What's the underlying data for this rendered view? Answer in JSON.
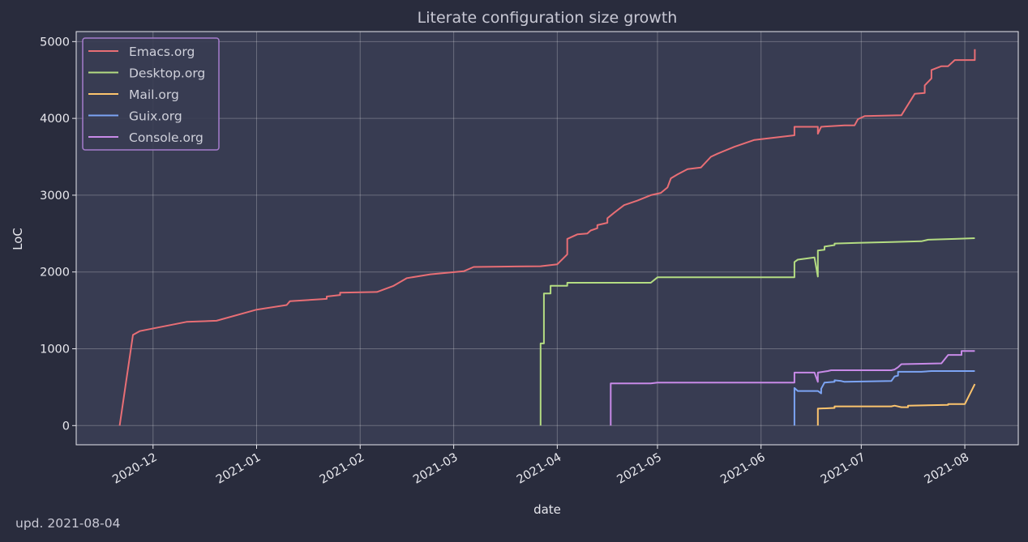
{
  "chart_data": {
    "type": "line",
    "title": "Literate configuration size growth",
    "xlabel": "date",
    "ylabel": "LoC",
    "xlim": [
      "2020-11-08",
      "2021-08-17"
    ],
    "ylim": [
      -250,
      5130
    ],
    "x_ticks": [
      "2020-12-01",
      "2021-01-01",
      "2021-02-01",
      "2021-03-01",
      "2021-04-01",
      "2021-05-01",
      "2021-06-01",
      "2021-07-01",
      "2021-08-01"
    ],
    "x_tick_labels": [
      "2020-12",
      "2021-01",
      "2021-02",
      "2021-03",
      "2021-04",
      "2021-05",
      "2021-06",
      "2021-07",
      "2021-08"
    ],
    "y_ticks": [
      0,
      1000,
      2000,
      3000,
      4000,
      5000
    ],
    "y_tick_labels": [
      "0",
      "1000",
      "2000",
      "3000",
      "4000",
      "5000"
    ],
    "grid": true,
    "legend_placement": "top-left",
    "colors": {
      "background": "#292c3d",
      "plot_background": "#383c52",
      "legend_border": "#a57ccc"
    },
    "series": [
      {
        "name": "Emacs.org",
        "color": "#e86e75",
        "points": [
          [
            "2020-11-21",
            0
          ],
          [
            "2020-11-25",
            1180
          ],
          [
            "2020-11-27",
            1230
          ],
          [
            "2020-12-11",
            1350
          ],
          [
            "2020-12-20",
            1365
          ],
          [
            "2021-01-01",
            1510
          ],
          [
            "2021-01-10",
            1570
          ],
          [
            "2021-01-11",
            1620
          ],
          [
            "2021-01-22",
            1650
          ],
          [
            "2021-01-22",
            1680
          ],
          [
            "2021-01-26",
            1700
          ],
          [
            "2021-01-26",
            1730
          ],
          [
            "2021-02-06",
            1740
          ],
          [
            "2021-02-11",
            1820
          ],
          [
            "2021-02-15",
            1920
          ],
          [
            "2021-02-22",
            1970
          ],
          [
            "2021-03-04",
            2010
          ],
          [
            "2021-03-07",
            2065
          ],
          [
            "2021-03-15",
            2070
          ],
          [
            "2021-03-27",
            2075
          ],
          [
            "2021-04-01",
            2100
          ],
          [
            "2021-04-04",
            2230
          ],
          [
            "2021-04-04",
            2430
          ],
          [
            "2021-04-05",
            2450
          ],
          [
            "2021-04-07",
            2490
          ],
          [
            "2021-04-10",
            2500
          ],
          [
            "2021-04-11",
            2540
          ],
          [
            "2021-04-13",
            2570
          ],
          [
            "2021-04-13",
            2610
          ],
          [
            "2021-04-16",
            2640
          ],
          [
            "2021-04-16",
            2700
          ],
          [
            "2021-04-18",
            2770
          ],
          [
            "2021-04-21",
            2870
          ],
          [
            "2021-04-25",
            2930
          ],
          [
            "2021-04-29",
            3000
          ],
          [
            "2021-05-02",
            3030
          ],
          [
            "2021-05-04",
            3100
          ],
          [
            "2021-05-05",
            3220
          ],
          [
            "2021-05-07",
            3270
          ],
          [
            "2021-05-10",
            3340
          ],
          [
            "2021-05-14",
            3360
          ],
          [
            "2021-05-17",
            3500
          ],
          [
            "2021-05-19",
            3540
          ],
          [
            "2021-05-24",
            3630
          ],
          [
            "2021-05-30",
            3720
          ],
          [
            "2021-06-11",
            3780
          ],
          [
            "2021-06-11",
            3890
          ],
          [
            "2021-06-18",
            3890
          ],
          [
            "2021-06-18",
            3800
          ],
          [
            "2021-06-19",
            3890
          ],
          [
            "2021-06-26",
            3910
          ],
          [
            "2021-06-29",
            3910
          ],
          [
            "2021-06-30",
            3990
          ],
          [
            "2021-07-02",
            4030
          ],
          [
            "2021-07-13",
            4040
          ],
          [
            "2021-07-17",
            4320
          ],
          [
            "2021-07-20",
            4330
          ],
          [
            "2021-07-20",
            4430
          ],
          [
            "2021-07-22",
            4520
          ],
          [
            "2021-07-22",
            4630
          ],
          [
            "2021-07-25",
            4680
          ],
          [
            "2021-07-27",
            4680
          ],
          [
            "2021-07-29",
            4760
          ],
          [
            "2021-08-04",
            4760
          ],
          [
            "2021-08-04",
            4900
          ]
        ]
      },
      {
        "name": "Desktop.org",
        "color": "#b4dc82",
        "points": [
          [
            "2021-03-27",
            0
          ],
          [
            "2021-03-27",
            540
          ],
          [
            "2021-03-27",
            1070
          ],
          [
            "2021-03-28",
            1070
          ],
          [
            "2021-03-28",
            1400
          ],
          [
            "2021-03-28",
            1720
          ],
          [
            "2021-03-30",
            1720
          ],
          [
            "2021-03-30",
            1820
          ],
          [
            "2021-04-04",
            1820
          ],
          [
            "2021-04-04",
            1860
          ],
          [
            "2021-04-29",
            1860
          ],
          [
            "2021-05-01",
            1930
          ],
          [
            "2021-06-11",
            1930
          ],
          [
            "2021-06-11",
            2130
          ],
          [
            "2021-06-12",
            2160
          ],
          [
            "2021-06-17",
            2190
          ],
          [
            "2021-06-18",
            1940
          ],
          [
            "2021-06-18",
            2280
          ],
          [
            "2021-06-20",
            2290
          ],
          [
            "2021-06-20",
            2330
          ],
          [
            "2021-06-23",
            2350
          ],
          [
            "2021-06-23",
            2370
          ],
          [
            "2021-06-30",
            2380
          ],
          [
            "2021-07-10",
            2390
          ],
          [
            "2021-07-19",
            2400
          ],
          [
            "2021-07-21",
            2420
          ],
          [
            "2021-07-29",
            2430
          ],
          [
            "2021-08-04",
            2440
          ]
        ]
      },
      {
        "name": "Mail.org",
        "color": "#fcc46d",
        "points": [
          [
            "2021-06-18",
            0
          ],
          [
            "2021-06-18",
            220
          ],
          [
            "2021-06-23",
            230
          ],
          [
            "2021-06-23",
            250
          ],
          [
            "2021-07-10",
            250
          ],
          [
            "2021-07-11",
            260
          ],
          [
            "2021-07-13",
            240
          ],
          [
            "2021-07-15",
            240
          ],
          [
            "2021-07-15",
            260
          ],
          [
            "2021-07-27",
            270
          ],
          [
            "2021-07-27",
            280
          ],
          [
            "2021-08-01",
            280
          ],
          [
            "2021-08-04",
            540
          ]
        ]
      },
      {
        "name": "Guix.org",
        "color": "#7ca4f4",
        "points": [
          [
            "2021-06-11",
            0
          ],
          [
            "2021-06-11",
            490
          ],
          [
            "2021-06-12",
            450
          ],
          [
            "2021-06-18",
            450
          ],
          [
            "2021-06-19",
            420
          ],
          [
            "2021-06-19",
            480
          ],
          [
            "2021-06-20",
            560
          ],
          [
            "2021-06-23",
            570
          ],
          [
            "2021-06-23",
            590
          ],
          [
            "2021-06-25",
            580
          ],
          [
            "2021-06-26",
            570
          ],
          [
            "2021-07-10",
            580
          ],
          [
            "2021-07-11",
            640
          ],
          [
            "2021-07-12",
            650
          ],
          [
            "2021-07-12",
            700
          ],
          [
            "2021-07-19",
            700
          ],
          [
            "2021-07-22",
            710
          ],
          [
            "2021-08-04",
            710
          ]
        ]
      },
      {
        "name": "Console.org",
        "color": "#c88ae8",
        "points": [
          [
            "2021-04-17",
            0
          ],
          [
            "2021-04-17",
            550
          ],
          [
            "2021-04-29",
            550
          ],
          [
            "2021-05-01",
            560
          ],
          [
            "2021-06-11",
            560
          ],
          [
            "2021-06-11",
            690
          ],
          [
            "2021-06-17",
            690
          ],
          [
            "2021-06-18",
            570
          ],
          [
            "2021-06-18",
            690
          ],
          [
            "2021-06-21",
            710
          ],
          [
            "2021-06-22",
            720
          ],
          [
            "2021-07-10",
            720
          ],
          [
            "2021-07-11",
            730
          ],
          [
            "2021-07-12",
            760
          ],
          [
            "2021-07-13",
            800
          ],
          [
            "2021-07-25",
            810
          ],
          [
            "2021-07-27",
            920
          ],
          [
            "2021-07-31",
            920
          ],
          [
            "2021-07-31",
            970
          ],
          [
            "2021-08-04",
            970
          ]
        ]
      }
    ]
  },
  "footer": {
    "updated": "upd. 2021-08-04"
  }
}
